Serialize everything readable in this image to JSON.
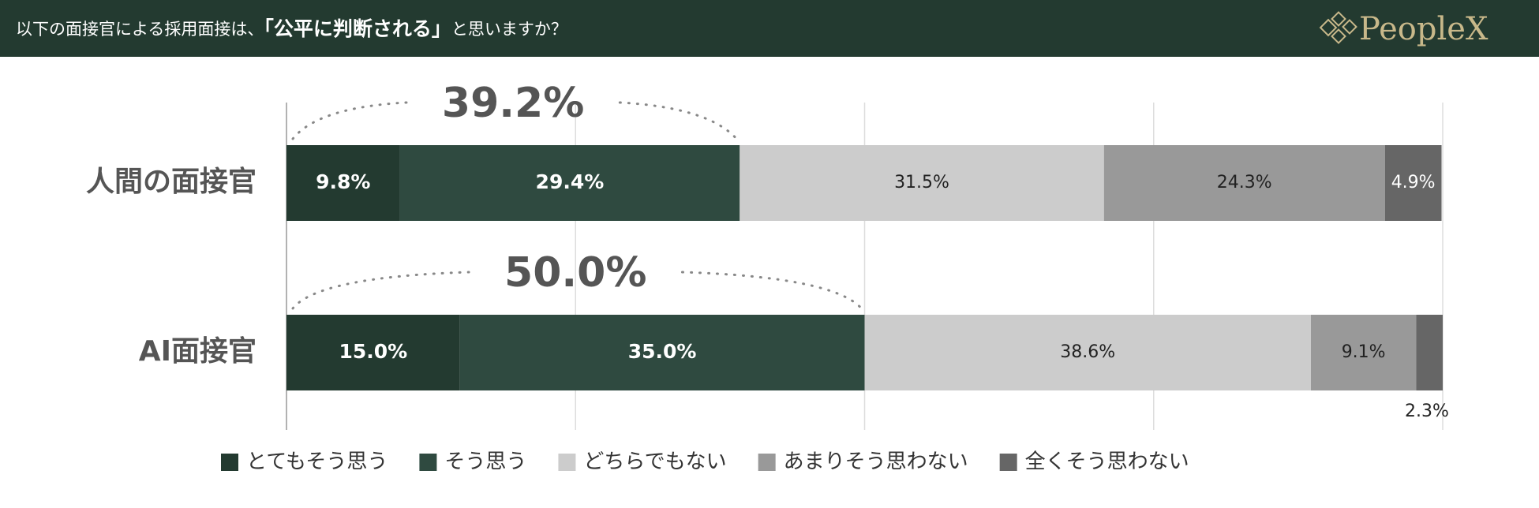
{
  "header": {
    "title_parts": [
      "以下の面接官による採用面接は、",
      "「公平に判断される」",
      "と思いますか？"
    ],
    "logo": "PeopleX"
  },
  "chart_data": {
    "type": "stacked_barh",
    "categories": [
      "人間の面接官",
      "AI面接官"
    ],
    "annotations": [
      "39.2%",
      "50.0%"
    ],
    "series": [
      {
        "name": "とてもそう思う",
        "color": "#233a30",
        "values": [
          9.8,
          15.0
        ],
        "value_labels": [
          "9.8%",
          "15.0%"
        ]
      },
      {
        "name": "そう思う",
        "color": "#2f4a40",
        "values": [
          29.4,
          35.0
        ],
        "value_labels": [
          "29.4%",
          "35.0%"
        ]
      },
      {
        "name": "どちらでもない",
        "color": "#cccccc",
        "values": [
          31.5,
          38.6
        ],
        "value_labels": [
          "31.5%",
          "38.6%"
        ]
      },
      {
        "name": "あまりそう思わない",
        "color": "#999999",
        "values": [
          24.3,
          9.1
        ],
        "value_labels": [
          "24.3%",
          "9.1%"
        ]
      },
      {
        "name": "全くそう思わない",
        "color": "#666666",
        "values": [
          4.9,
          2.3
        ],
        "value_labels": [
          "4.9%",
          "2.3%"
        ]
      }
    ],
    "xlim": [
      0,
      100
    ],
    "xticks": [
      0,
      25,
      50,
      75,
      100
    ],
    "grid": true,
    "legend": "bottom"
  }
}
